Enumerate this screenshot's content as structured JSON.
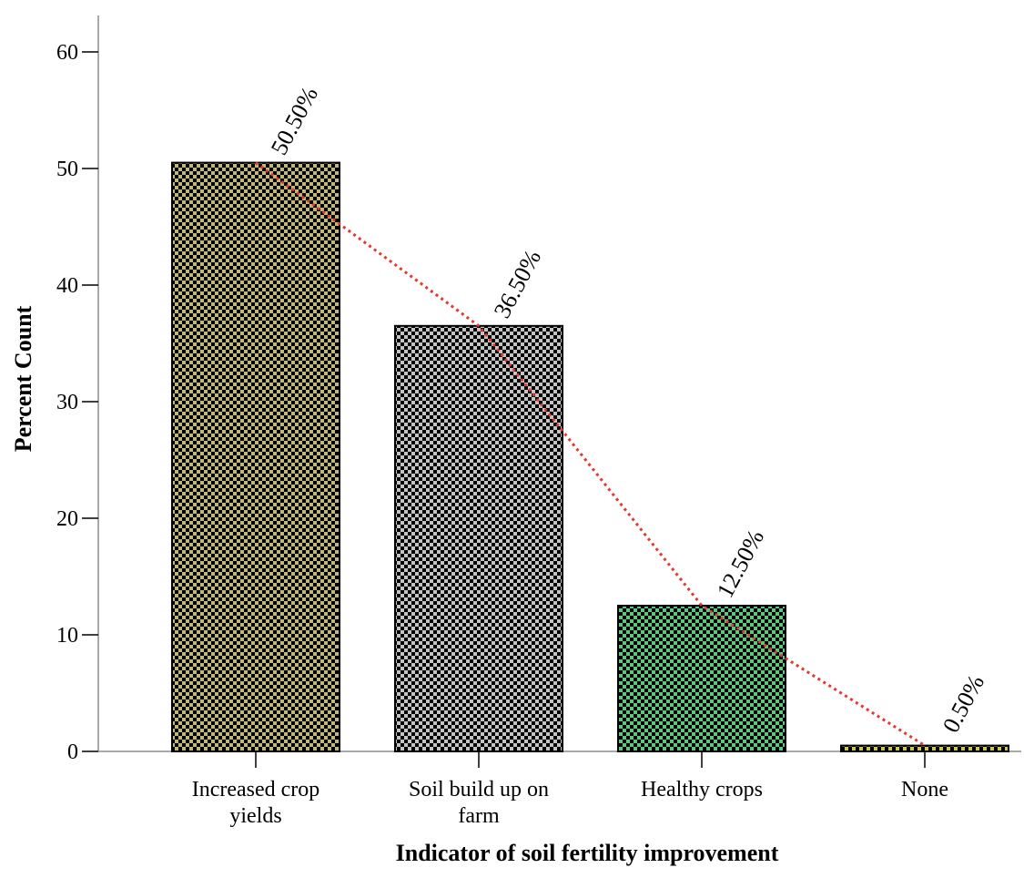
{
  "chart_data": {
    "type": "bar",
    "title": "",
    "xlabel": "Indicator of soil fertility improvement",
    "ylabel": "Percent Count",
    "categories": [
      [
        "Increased crop",
        "yields"
      ],
      [
        "Soil build up on",
        "farm"
      ],
      [
        "Healthy crops"
      ],
      [
        "None"
      ]
    ],
    "values": [
      50.5,
      36.5,
      12.5,
      0.5
    ],
    "data_labels": [
      "50.50%",
      "36.50%",
      "12.50%",
      "0.50%"
    ],
    "bar_colors": [
      "#c2b77a",
      "#c4c4c4",
      "#5cc77e",
      "#cfc45a"
    ],
    "pattern": "checkerboard",
    "trend_line": {
      "style": "dotted",
      "color": "#e8382b",
      "values": [
        50.5,
        36.5,
        12.5,
        0.5
      ]
    },
    "ylim": [
      0,
      60
    ],
    "yticks": [
      0,
      10,
      20,
      30,
      40,
      50,
      60
    ],
    "grid": false,
    "legend": "none"
  }
}
